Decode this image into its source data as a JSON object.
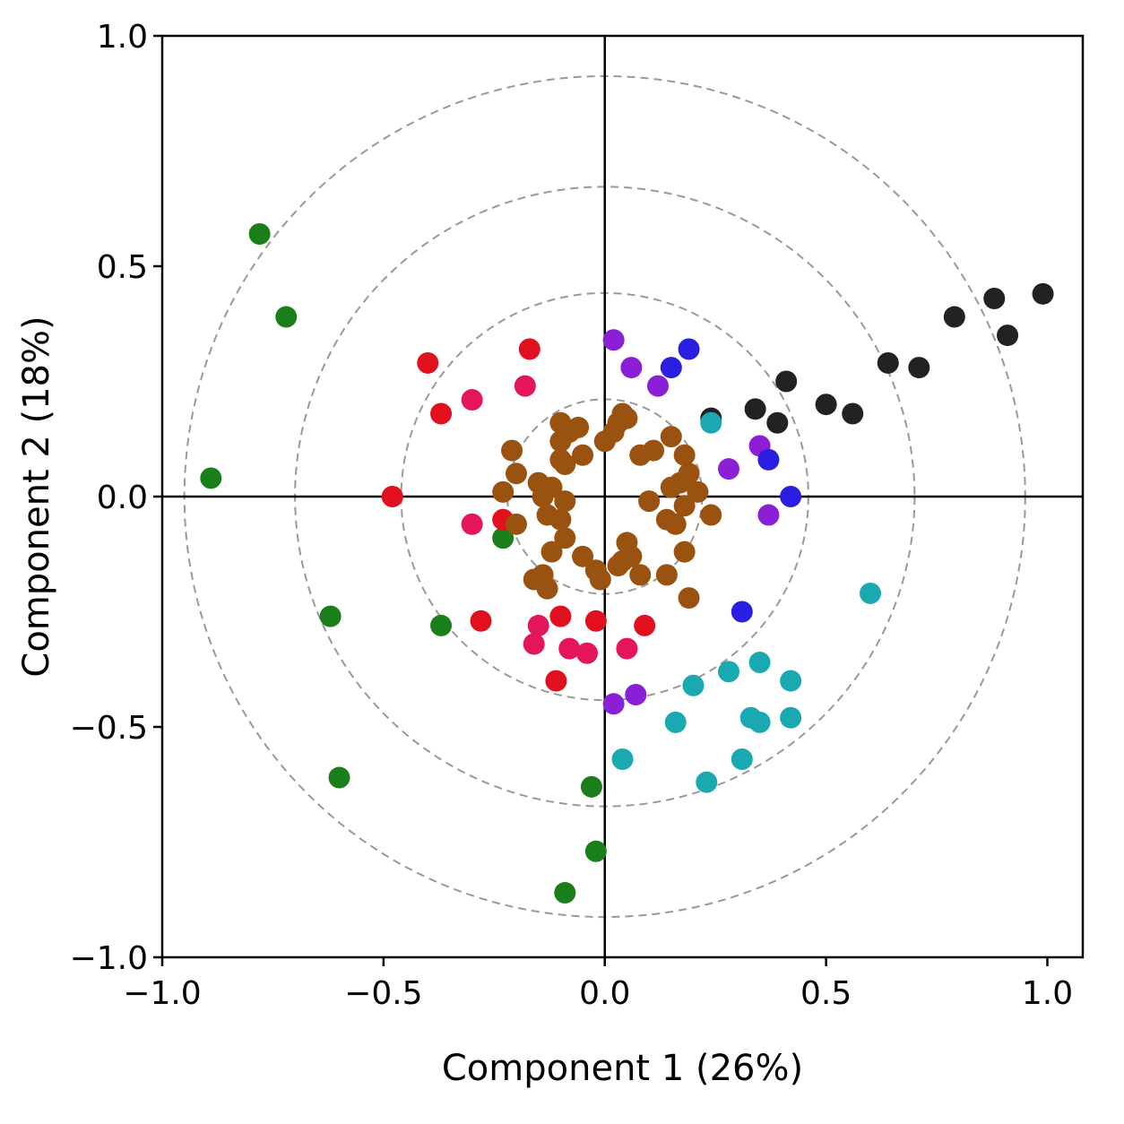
{
  "chart_data": {
    "type": "scatter",
    "xlabel": "Component 1 (26%)",
    "ylabel": "Component 2 (18%)",
    "xlim": [
      -1.0,
      1.08
    ],
    "ylim": [
      -1.0,
      1.0
    ],
    "xticks": [
      -1.0,
      -0.5,
      0.0,
      0.5,
      1.0
    ],
    "yticks": [
      -1.0,
      -0.5,
      0.0,
      0.5,
      1.0
    ],
    "xtick_labels": [
      "−1.0",
      "−0.5",
      "0.0",
      "0.5",
      "1.0"
    ],
    "ytick_labels": [
      "−1.0",
      "−0.5",
      "0.0",
      "0.5",
      "1.0"
    ],
    "reference_circles": {
      "center": [
        0.0,
        0.0
      ],
      "radii": [
        0.22,
        0.46,
        0.7,
        0.95
      ],
      "color": "#999999",
      "style": "dashed"
    },
    "zero_lines": true,
    "grid": false,
    "series": [
      {
        "color": "#1a7f1a",
        "x": [
          -0.78,
          -0.72,
          -0.89,
          -0.62,
          -0.6,
          -0.37,
          -0.23,
          -0.03,
          -0.02,
          -0.09
        ],
        "y": [
          0.57,
          0.39,
          0.04,
          -0.26,
          -0.61,
          -0.28,
          -0.09,
          -0.63,
          -0.77,
          -0.86
        ]
      },
      {
        "color": "#e0101e",
        "x": [
          -0.17,
          -0.4,
          -0.37,
          -0.48,
          -0.23,
          -0.28,
          -0.1,
          -0.02,
          0.09,
          -0.11
        ],
        "y": [
          0.32,
          0.29,
          0.18,
          0.0,
          -0.05,
          -0.27,
          -0.26,
          -0.27,
          -0.28,
          -0.4
        ]
      },
      {
        "color": "#e3165c",
        "x": [
          -0.18,
          -0.3,
          -0.3,
          -0.15,
          -0.16,
          -0.08,
          -0.04,
          0.05
        ],
        "y": [
          0.24,
          0.21,
          -0.06,
          -0.28,
          -0.32,
          -0.33,
          -0.34,
          -0.33
        ]
      },
      {
        "color": "#9a5211",
        "x": [
          -0.1,
          -0.08,
          -0.06,
          -0.1,
          -0.05,
          -0.21,
          -0.23,
          -0.1,
          -0.09,
          -0.15,
          -0.12,
          -0.2,
          -0.14,
          -0.13,
          -0.09,
          -0.1,
          -0.2,
          -0.12,
          -0.14,
          -0.16,
          -0.13,
          -0.09,
          -0.05,
          -0.02,
          -0.01,
          0.03,
          0.05,
          0.08,
          0.11,
          0.15,
          0.18,
          0.19,
          0.17,
          0.15,
          0.21,
          0.24,
          0.04,
          0.03,
          0.05,
          0.02,
          0.0,
          0.08,
          0.14,
          0.16,
          0.18,
          0.19,
          0.14,
          0.18,
          0.04,
          0.06,
          0.1
        ],
        "y": [
          0.16,
          0.14,
          0.15,
          0.12,
          0.09,
          0.1,
          0.01,
          0.08,
          0.07,
          0.03,
          0.02,
          0.05,
          0.0,
          -0.04,
          -0.01,
          -0.05,
          -0.06,
          -0.12,
          -0.17,
          -0.18,
          -0.2,
          -0.09,
          -0.13,
          -0.16,
          -0.18,
          -0.15,
          -0.1,
          0.09,
          0.1,
          0.13,
          0.09,
          0.05,
          0.03,
          0.02,
          0.01,
          -0.04,
          0.18,
          0.16,
          0.17,
          0.14,
          0.12,
          -0.17,
          -0.05,
          -0.06,
          -0.12,
          -0.22,
          -0.17,
          -0.02,
          -0.14,
          -0.13,
          -0.01
        ]
      },
      {
        "color": "#8b1fd6",
        "x": [
          0.02,
          0.06,
          0.12,
          0.35,
          0.28,
          0.37,
          0.02,
          0.07
        ],
        "y": [
          0.34,
          0.28,
          0.24,
          0.11,
          0.06,
          -0.04,
          -0.45,
          -0.43
        ]
      },
      {
        "color": "#2a1fe0",
        "x": [
          0.19,
          0.15,
          0.42,
          0.31,
          0.37
        ],
        "y": [
          0.32,
          0.28,
          0.0,
          -0.25,
          0.08
        ]
      },
      {
        "color": "#222222",
        "x": [
          0.99,
          0.88,
          0.91,
          0.79,
          0.64,
          0.71,
          0.41,
          0.5,
          0.56,
          0.34,
          0.39,
          0.24
        ],
        "y": [
          0.44,
          0.43,
          0.35,
          0.39,
          0.29,
          0.28,
          0.25,
          0.2,
          0.18,
          0.19,
          0.16,
          0.17
        ]
      },
      {
        "color": "#1aa9b0",
        "x": [
          0.6,
          0.35,
          0.42,
          0.28,
          0.2,
          0.16,
          0.33,
          0.35,
          0.42,
          0.31,
          0.23,
          0.04,
          0.24
        ],
        "y": [
          -0.21,
          -0.36,
          -0.4,
          -0.38,
          -0.41,
          -0.49,
          -0.48,
          -0.49,
          -0.48,
          -0.57,
          -0.62,
          -0.57,
          0.16
        ]
      }
    ]
  }
}
